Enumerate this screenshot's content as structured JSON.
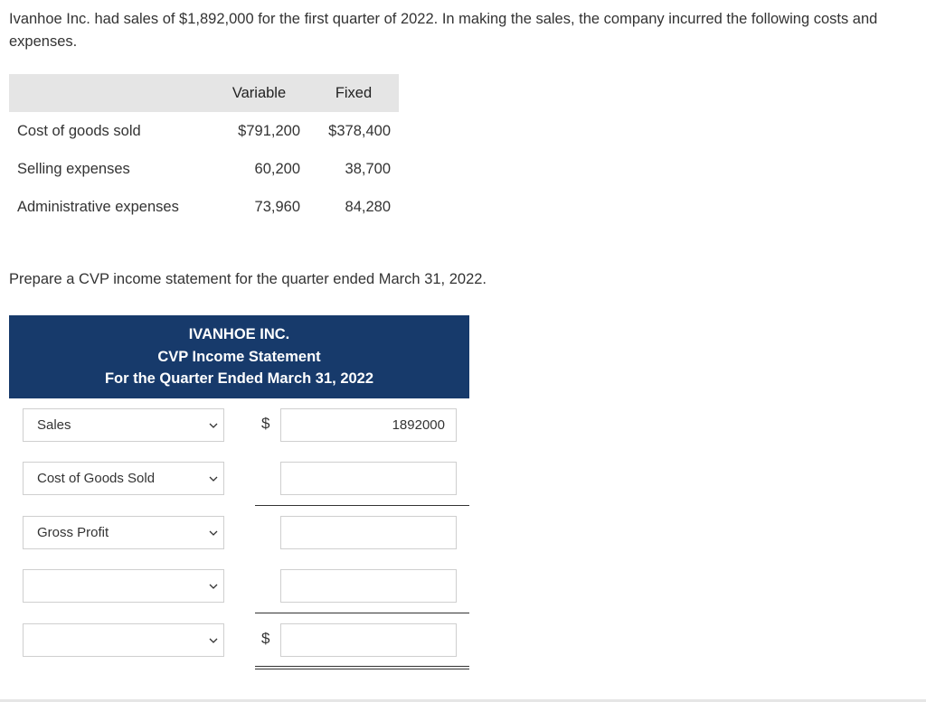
{
  "intro": "Ivanhoe Inc. had sales of $1,892,000 for the first quarter of 2022. In making the sales, the company incurred the following costs and expenses.",
  "cost_table": {
    "headers": [
      "",
      "Variable",
      "Fixed"
    ],
    "rows": [
      {
        "label": "Cost of goods sold",
        "variable": "$791,200",
        "fixed": "$378,400"
      },
      {
        "label": "Selling expenses",
        "variable": "60,200",
        "fixed": "38,700"
      },
      {
        "label": "Administrative expenses",
        "variable": "73,960",
        "fixed": "84,280"
      }
    ]
  },
  "instruction": "Prepare a CVP income statement for the quarter ended March 31, 2022.",
  "statement": {
    "company": "IVANHOE INC.",
    "title": "CVP Income Statement",
    "period": "For the Quarter Ended March 31, 2022",
    "rows": [
      {
        "select": "Sales",
        "dollar": "$",
        "value": "1892000"
      },
      {
        "select": "Cost of Goods Sold",
        "dollar": "",
        "value": ""
      },
      {
        "select": "Gross Profit",
        "dollar": "",
        "value": ""
      },
      {
        "select": "",
        "dollar": "",
        "value": ""
      },
      {
        "select": "",
        "dollar": "$",
        "value": ""
      }
    ]
  }
}
